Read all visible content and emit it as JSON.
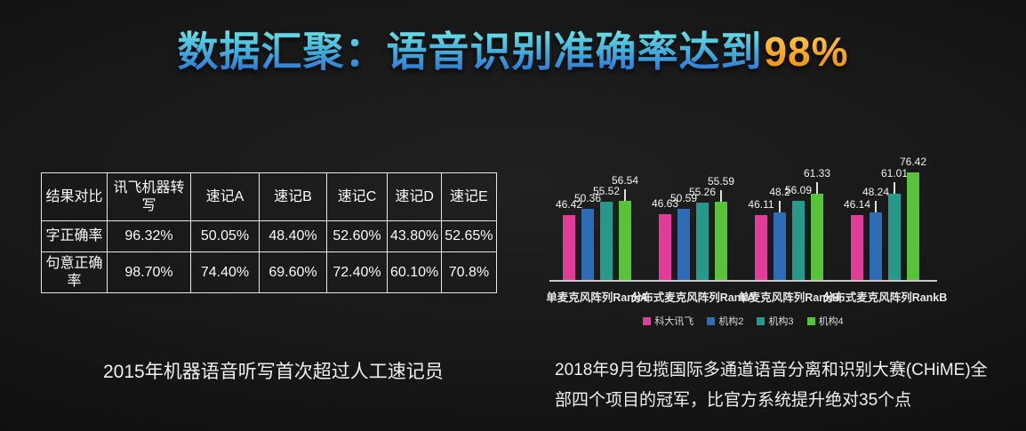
{
  "slide_title": {
    "main": "数据汇聚：语音识别准确率达到",
    "highlight": "98%",
    "main_colors": [
      "#6fe6e4",
      "#2b6ed4"
    ],
    "highlight_colors": [
      "#ffd158",
      "#ef8d14"
    ]
  },
  "captions": {
    "left": "2015年机器语音听写首次超过人工速记员",
    "right": "2018年9月包揽国际多通道语音分离和识别大赛(CHiME)全部四个项目的冠军，比官方系统提升绝对35个点"
  },
  "chart_data": [
    {
      "type": "table",
      "columns": [
        "结果对比",
        "讯飞机器转写",
        "速记A",
        "速记B",
        "速记C",
        "速记D",
        "速记E"
      ],
      "rows": [
        [
          "字正确率",
          "96.32%",
          "50.05%",
          "48.40%",
          "52.60%",
          "43.80%",
          "52.65%"
        ],
        [
          "句意正确率",
          "98.70%",
          "74.40%",
          "69.60%",
          "72.40%",
          "60.10%",
          "70.8%"
        ]
      ]
    },
    {
      "type": "bar",
      "title": "",
      "categories": [
        "单麦克风阵列RankA",
        "分布式麦克风阵列RankA",
        "单麦克风阵列RankB",
        "分布式麦克风阵列RankB"
      ],
      "series": [
        {
          "name": "科大讯飞",
          "color": "#e23c9b",
          "values": [
            46.42,
            46.63,
            46.11,
            46.14
          ],
          "whiskers": [
            false,
            false,
            false,
            false
          ]
        },
        {
          "name": "机构2",
          "color": "#2e6cb5",
          "values": [
            50.36,
            50.59,
            48.2,
            48.24
          ],
          "whiskers": [
            false,
            false,
            true,
            true
          ]
        },
        {
          "name": "机构3",
          "color": "#27998a",
          "values": [
            55.52,
            55.26,
            56.09,
            61.01
          ],
          "whiskers": [
            false,
            false,
            false,
            true
          ]
        },
        {
          "name": "机构4",
          "color": "#58c23b",
          "values": [
            56.54,
            55.59,
            61.33,
            76.42
          ],
          "whiskers": [
            true,
            true,
            true,
            false
          ]
        }
      ],
      "ylim": [
        0,
        80
      ],
      "value_labels": true,
      "grid": false,
      "legend_position": "bottom",
      "axis_color": "#c9c9c9"
    }
  ]
}
